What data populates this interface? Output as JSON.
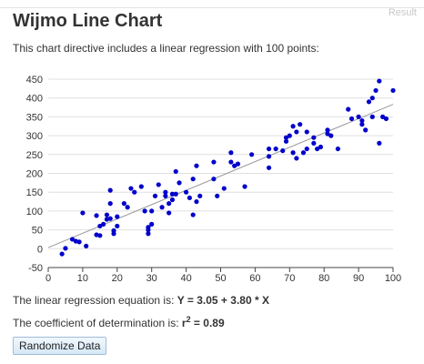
{
  "result_label": "Result",
  "title": "Wijmo Line Chart",
  "intro": "This chart directive includes a linear regression with 100 points:",
  "regression_prefix": "The linear regression equation is:",
  "regression_equation": "Y = 3.05 + 3.80 * X",
  "determination_prefix": "The coefficient of determination is:",
  "r2_symbol": "r",
  "r2_exp": "2",
  "r2_value": "= 0.89",
  "button_label": "Randomize Data",
  "colors": {
    "points": "#0000cc",
    "trend": "#999999",
    "grid": "#e0e0e0"
  },
  "chart_data": {
    "type": "scatter",
    "xlim": [
      0,
      100
    ],
    "ylim": [
      -50,
      450
    ],
    "x_ticks": [
      0,
      10,
      20,
      30,
      40,
      50,
      60,
      70,
      80,
      90,
      100
    ],
    "y_ticks": [
      -50,
      0,
      50,
      100,
      150,
      200,
      250,
      300,
      350,
      400,
      450
    ],
    "grid": "horizontal",
    "trendline": {
      "intercept": 3.05,
      "slope": 3.8
    },
    "points": [
      [
        4,
        -14
      ],
      [
        5,
        1
      ],
      [
        7,
        25
      ],
      [
        8,
        20
      ],
      [
        9,
        18
      ],
      [
        10,
        95
      ],
      [
        11,
        7
      ],
      [
        14,
        88
      ],
      [
        14,
        37
      ],
      [
        15,
        60
      ],
      [
        15,
        35
      ],
      [
        16,
        65
      ],
      [
        17,
        90
      ],
      [
        17,
        78
      ],
      [
        18,
        80
      ],
      [
        18,
        155
      ],
      [
        18,
        120
      ],
      [
        19,
        40
      ],
      [
        19,
        48
      ],
      [
        20,
        60
      ],
      [
        20,
        85
      ],
      [
        22,
        120
      ],
      [
        23,
        110
      ],
      [
        24,
        160
      ],
      [
        25,
        150
      ],
      [
        27,
        165
      ],
      [
        28,
        100
      ],
      [
        29,
        40
      ],
      [
        29,
        50
      ],
      [
        29,
        57
      ],
      [
        30,
        65
      ],
      [
        30,
        100
      ],
      [
        31,
        140
      ],
      [
        32,
        170
      ],
      [
        33,
        110
      ],
      [
        34,
        150
      ],
      [
        34,
        140
      ],
      [
        35,
        95
      ],
      [
        35,
        120
      ],
      [
        36,
        145
      ],
      [
        36,
        130
      ],
      [
        37,
        205
      ],
      [
        37,
        145
      ],
      [
        38,
        175
      ],
      [
        40,
        150
      ],
      [
        41,
        135
      ],
      [
        42,
        90
      ],
      [
        42,
        185
      ],
      [
        43,
        220
      ],
      [
        43,
        125
      ],
      [
        44,
        140
      ],
      [
        48,
        185
      ],
      [
        48,
        230
      ],
      [
        49,
        140
      ],
      [
        51,
        160
      ],
      [
        53,
        230
      ],
      [
        53,
        255
      ],
      [
        54,
        220
      ],
      [
        55,
        225
      ],
      [
        57,
        165
      ],
      [
        59,
        250
      ],
      [
        64,
        215
      ],
      [
        64,
        265
      ],
      [
        64,
        245
      ],
      [
        66,
        265
      ],
      [
        68,
        260
      ],
      [
        69,
        285
      ],
      [
        69,
        295
      ],
      [
        70,
        300
      ],
      [
        71,
        255
      ],
      [
        71,
        325
      ],
      [
        72,
        310
      ],
      [
        72,
        240
      ],
      [
        73,
        330
      ],
      [
        74,
        255
      ],
      [
        75,
        265
      ],
      [
        75,
        310
      ],
      [
        77,
        280
      ],
      [
        77,
        295
      ],
      [
        78,
        265
      ],
      [
        79,
        270
      ],
      [
        81,
        305
      ],
      [
        81,
        315
      ],
      [
        82,
        300
      ],
      [
        84,
        265
      ],
      [
        87,
        370
      ],
      [
        88,
        345
      ],
      [
        90,
        350
      ],
      [
        91,
        330
      ],
      [
        91,
        340
      ],
      [
        92,
        315
      ],
      [
        93,
        390
      ],
      [
        94,
        350
      ],
      [
        94,
        400
      ],
      [
        95,
        420
      ],
      [
        96,
        445
      ],
      [
        96,
        280
      ],
      [
        97,
        350
      ],
      [
        98,
        345
      ],
      [
        100,
        420
      ]
    ]
  }
}
